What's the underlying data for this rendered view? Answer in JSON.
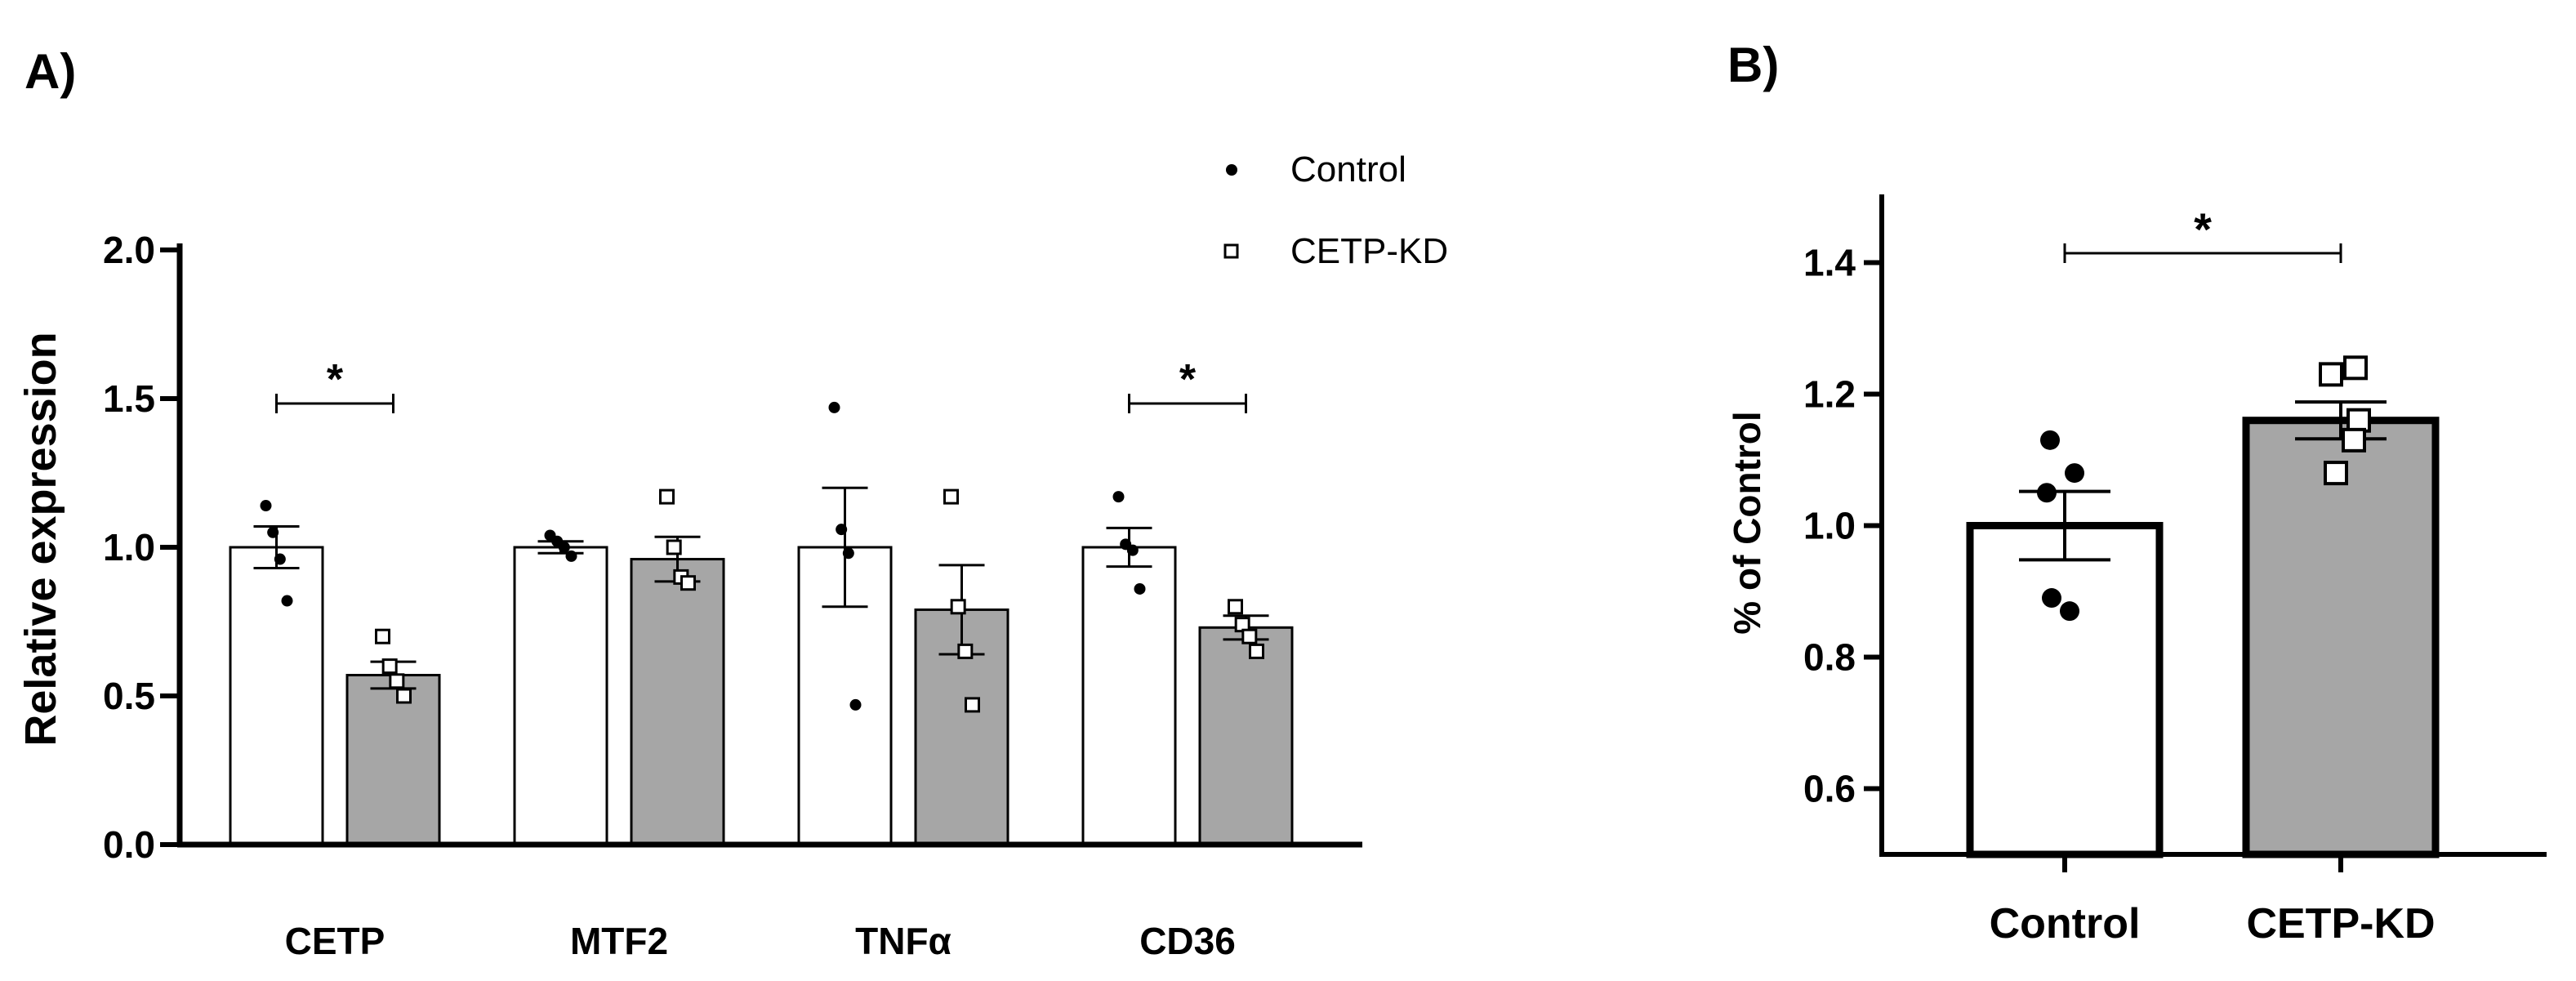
{
  "chart_data": [
    {
      "panel_label": "A)",
      "type": "bar",
      "title": "",
      "xlabel": "",
      "ylabel": "Relative expression",
      "ylim": [
        0.0,
        2.0
      ],
      "yticks": [
        "0.0",
        "0.5",
        "1.0",
        "1.5",
        "2.0"
      ],
      "categories": [
        "CETP",
        "MTF2",
        "TNFα",
        "CD36"
      ],
      "series": [
        {
          "name": "Control",
          "color": "#ffffff",
          "marker": "filled-dot",
          "values": [
            1.0,
            1.0,
            1.0,
            1.0
          ],
          "sem": [
            0.07,
            0.02,
            0.2,
            0.065
          ],
          "points": [
            [
              1.14,
              1.05,
              0.96,
              0.82
            ],
            [
              1.04,
              1.02,
              1.0,
              0.97
            ],
            [
              1.47,
              1.06,
              0.98,
              0.47
            ],
            [
              1.17,
              1.01,
              0.99,
              0.86
            ]
          ]
        },
        {
          "name": "CETP-KD",
          "color": "#a6a6a6",
          "marker": "open-square",
          "values": [
            0.57,
            0.96,
            0.79,
            0.73
          ],
          "sem": [
            0.045,
            0.075,
            0.15,
            0.04
          ],
          "points": [
            [
              0.7,
              0.6,
              0.55,
              0.5
            ],
            [
              1.17,
              1.0,
              0.9,
              0.88
            ],
            [
              1.17,
              0.8,
              0.65,
              0.47
            ],
            [
              0.8,
              0.74,
              0.7,
              0.65
            ]
          ]
        }
      ],
      "significance": [
        {
          "category": "CETP",
          "label": "*"
        },
        {
          "category": "CD36",
          "label": "*"
        }
      ],
      "legend": {
        "position": "top-right",
        "entries": [
          "Control",
          "CETP-KD"
        ]
      }
    },
    {
      "panel_label": "B)",
      "type": "bar",
      "title": "",
      "xlabel": "",
      "ylabel": "% of Control",
      "ylim": [
        0.5,
        1.5
      ],
      "yticks": [
        "0.6",
        "0.8",
        "1.0",
        "1.2",
        "1.4"
      ],
      "categories": [
        "Control",
        "CETP-KD"
      ],
      "colors": [
        "#ffffff",
        "#a6a6a6"
      ],
      "markers": [
        "filled-dot",
        "open-square"
      ],
      "values": [
        1.0,
        1.16
      ],
      "sem": [
        0.052,
        0.028
      ],
      "points": [
        [
          1.13,
          1.08,
          1.05,
          0.89,
          0.87
        ],
        [
          1.24,
          1.23,
          1.16,
          1.13,
          1.08
        ]
      ],
      "significance": [
        {
          "between": [
            "Control",
            "CETP-KD"
          ],
          "label": "*"
        }
      ]
    }
  ]
}
